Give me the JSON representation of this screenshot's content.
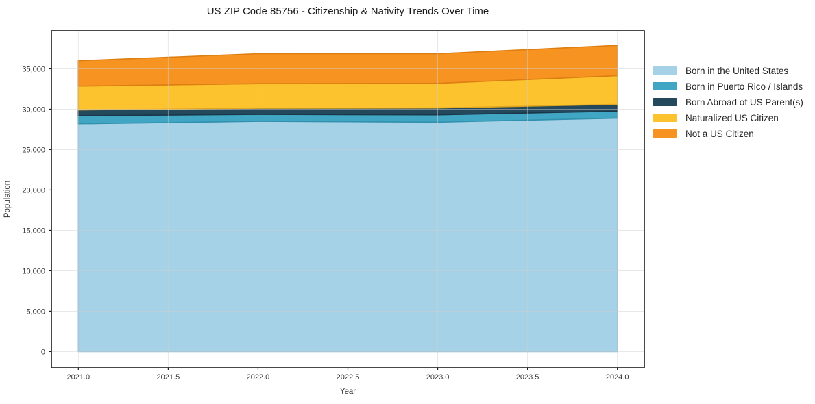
{
  "figure": {
    "background": "#ffffff"
  },
  "chart_data": {
    "type": "area",
    "stacked": true,
    "title": "US ZIP Code 85756 - Citizenship & Nativity Trends Over Time",
    "xlabel": "Year",
    "ylabel": "Population",
    "x": [
      2021,
      2022,
      2023,
      2024
    ],
    "series": [
      {
        "name": "Born in the United States",
        "color": "#A6D2E7",
        "edge_color": "#8CBFDA",
        "values": [
          28200,
          28500,
          28400,
          28900
        ]
      },
      {
        "name": "Born in Puerto Rico / Islands",
        "color": "#41A6C3",
        "edge_color": "#3190AD",
        "values": [
          1000,
          850,
          900,
          850
        ]
      },
      {
        "name": "Born Abroad of US Parent(s)",
        "color": "#24485C",
        "edge_color": "#1A3748",
        "values": [
          700,
          760,
          850,
          850
        ]
      },
      {
        "name": "Naturalized US Citizen",
        "color": "#FDC32F",
        "edge_color": "#DFA51E",
        "values": [
          2960,
          3050,
          3050,
          3550
        ]
      },
      {
        "name": "Not a US Citizen",
        "color": "#F79421",
        "edge_color": "#DD7E12",
        "values": [
          3140,
          3700,
          3650,
          3750
        ]
      }
    ],
    "totals": [
      36000,
      36860,
      36850,
      37900
    ],
    "xlim": [
      2020.85,
      2024.15
    ],
    "ylim": [
      -2000,
      39700
    ],
    "x_ticks": [
      {
        "value": 2021.0,
        "label": "2021.0"
      },
      {
        "value": 2021.5,
        "label": "2021.5"
      },
      {
        "value": 2022.0,
        "label": "2022.0"
      },
      {
        "value": 2022.5,
        "label": "2022.5"
      },
      {
        "value": 2023.0,
        "label": "2023.0"
      },
      {
        "value": 2023.5,
        "label": "2023.5"
      },
      {
        "value": 2024.0,
        "label": "2024.0"
      }
    ],
    "y_ticks": [
      {
        "value": 0,
        "label": "0"
      },
      {
        "value": 5000,
        "label": "5,000"
      },
      {
        "value": 10000,
        "label": "10,000"
      },
      {
        "value": 15000,
        "label": "15,000"
      },
      {
        "value": 20000,
        "label": "20,000"
      },
      {
        "value": 25000,
        "label": "25,000"
      },
      {
        "value": 30000,
        "label": "30,000"
      },
      {
        "value": 35000,
        "label": "35,000"
      }
    ],
    "grid": true,
    "grid_color": "#d0d0d0",
    "frame_color": "#1a1a1a",
    "legend_position": "right"
  }
}
